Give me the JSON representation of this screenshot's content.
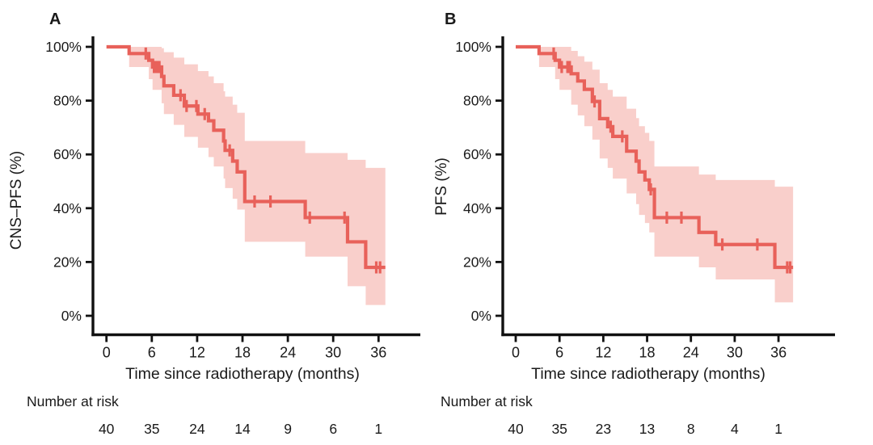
{
  "figure": {
    "background": "#ffffff",
    "text_color": "#1a1a1a",
    "axis_color": "#111111"
  },
  "chart_data": [
    {
      "type": "line",
      "subtype": "kaplan-meier-step-with-confidence-band",
      "panel_label": "A",
      "xlabel": "Time since radiotherapy (months)",
      "ylabel": "CNS–PFS (%)",
      "risk_label": "Number at risk",
      "line_color": "#e8615a",
      "band_color": "#f9cfcb",
      "xlim": [
        0,
        38
      ],
      "ylim": [
        0,
        100
      ],
      "grid": false,
      "legend": "none",
      "x_ticks": [
        {
          "value": 0,
          "label": "0"
        },
        {
          "value": 6,
          "label": "6"
        },
        {
          "value": 12,
          "label": "12"
        },
        {
          "value": 18,
          "label": "18"
        },
        {
          "value": 24,
          "label": "24"
        },
        {
          "value": 30,
          "label": "30"
        },
        {
          "value": 36,
          "label": "36"
        }
      ],
      "y_ticks": [
        {
          "value": 100,
          "label": "100%"
        },
        {
          "value": 80,
          "label": "80%"
        },
        {
          "value": 60,
          "label": "60%"
        },
        {
          "value": 40,
          "label": "40%"
        },
        {
          "value": 20,
          "label": "20%"
        },
        {
          "value": 0,
          "label": "0%"
        }
      ],
      "steps": [
        [
          0,
          100
        ],
        [
          3,
          97.5
        ],
        [
          5.6,
          95
        ],
        [
          6.1,
          92.5
        ],
        [
          7.3,
          89
        ],
        [
          7.6,
          85.5
        ],
        [
          8.9,
          82
        ],
        [
          10.3,
          78
        ],
        [
          12.1,
          75
        ],
        [
          13.5,
          72.5
        ],
        [
          14.2,
          69
        ],
        [
          15.5,
          65
        ],
        [
          15.7,
          61.5
        ],
        [
          16.7,
          57.5
        ],
        [
          17.3,
          53.5
        ],
        [
          18.3,
          42.5
        ],
        [
          26.3,
          36.5
        ],
        [
          31.9,
          27.5
        ],
        [
          34.3,
          18
        ]
      ],
      "end_time": 36.9,
      "censors": [
        [
          5.2,
          97.5
        ],
        [
          6.3,
          92.5
        ],
        [
          6.55,
          92.5
        ],
        [
          6.8,
          92.5
        ],
        [
          7.0,
          92.5
        ],
        [
          9.8,
          82
        ],
        [
          10.6,
          78
        ],
        [
          11.9,
          78
        ],
        [
          13.0,
          75
        ],
        [
          16.3,
          61.5
        ],
        [
          19.6,
          42.5
        ],
        [
          21.7,
          42.5
        ],
        [
          26.9,
          36.5
        ],
        [
          31.5,
          36.5
        ],
        [
          35.7,
          18
        ],
        [
          36.2,
          18
        ]
      ],
      "band": [
        [
          0,
          100,
          100
        ],
        [
          3,
          92.5,
          100
        ],
        [
          5.6,
          88,
          100
        ],
        [
          6.1,
          84,
          100
        ],
        [
          7.3,
          79,
          99.5
        ],
        [
          7.6,
          75,
          98
        ],
        [
          8.9,
          71,
          96
        ],
        [
          10.3,
          66.5,
          93.5
        ],
        [
          12.1,
          62.5,
          91
        ],
        [
          13.5,
          59,
          89
        ],
        [
          14.2,
          55.5,
          86.5
        ],
        [
          15.5,
          51,
          83.5
        ],
        [
          15.7,
          47.5,
          81.5
        ],
        [
          16.7,
          43.5,
          78.5
        ],
        [
          17.3,
          39.5,
          75.5
        ],
        [
          18.3,
          27.5,
          65
        ],
        [
          26.3,
          22,
          60.5
        ],
        [
          31.9,
          11,
          58
        ],
        [
          34.3,
          4,
          55
        ]
      ],
      "number_at_risk": {
        "times": [
          0,
          6,
          12,
          18,
          24,
          30,
          36
        ],
        "counts": [
          40,
          35,
          24,
          14,
          9,
          6,
          1
        ]
      }
    },
    {
      "type": "line",
      "subtype": "kaplan-meier-step-with-confidence-band",
      "panel_label": "B",
      "xlabel": "Time since radiotherapy (months)",
      "ylabel": "PFS (%)",
      "risk_label": "Number at risk",
      "line_color": "#e8615a",
      "band_color": "#f9cfcb",
      "xlim": [
        0,
        38
      ],
      "ylim": [
        0,
        100
      ],
      "grid": false,
      "legend": "none",
      "x_ticks": [
        {
          "value": 0,
          "label": "0"
        },
        {
          "value": 6,
          "label": "6"
        },
        {
          "value": 12,
          "label": "12"
        },
        {
          "value": 18,
          "label": "18"
        },
        {
          "value": 24,
          "label": "24"
        },
        {
          "value": 30,
          "label": "30"
        },
        {
          "value": 36,
          "label": "36"
        }
      ],
      "y_ticks": [
        {
          "value": 100,
          "label": "100%"
        },
        {
          "value": 80,
          "label": "80%"
        },
        {
          "value": 60,
          "label": "60%"
        },
        {
          "value": 40,
          "label": "40%"
        },
        {
          "value": 20,
          "label": "20%"
        },
        {
          "value": 0,
          "label": "0%"
        }
      ],
      "steps": [
        [
          0,
          100
        ],
        [
          3.2,
          97.5
        ],
        [
          5.4,
          95
        ],
        [
          6.0,
          92.5
        ],
        [
          7.6,
          90
        ],
        [
          8.5,
          87.3
        ],
        [
          9.4,
          84.2
        ],
        [
          10.5,
          79.7
        ],
        [
          11.5,
          73.3
        ],
        [
          12.6,
          70.3
        ],
        [
          13.3,
          66.7
        ],
        [
          15.2,
          61.2
        ],
        [
          16.5,
          57.5
        ],
        [
          16.9,
          53.5
        ],
        [
          17.7,
          50.5
        ],
        [
          18.3,
          47
        ],
        [
          19.0,
          36.5
        ],
        [
          25.1,
          31
        ],
        [
          27.4,
          26.5
        ],
        [
          35.5,
          18
        ]
      ],
      "end_time": 38.0,
      "censors": [
        [
          5.2,
          97.5
        ],
        [
          6.3,
          92.5
        ],
        [
          7.1,
          92.5
        ],
        [
          7.4,
          92.5
        ],
        [
          10.8,
          79.7
        ],
        [
          13.0,
          70.3
        ],
        [
          14.6,
          66.7
        ],
        [
          18.5,
          47
        ],
        [
          20.7,
          36.5
        ],
        [
          22.7,
          36.5
        ],
        [
          28.3,
          26.5
        ],
        [
          33.1,
          26.5
        ],
        [
          37.2,
          18
        ],
        [
          37.6,
          18
        ]
      ],
      "band": [
        [
          0,
          100,
          100
        ],
        [
          3.2,
          92.5,
          100
        ],
        [
          5.4,
          88,
          100
        ],
        [
          6.0,
          84,
          100
        ],
        [
          7.6,
          78.5,
          98.5
        ],
        [
          8.5,
          74.5,
          96.5
        ],
        [
          9.4,
          70.5,
          94.5
        ],
        [
          10.5,
          65.5,
          91.5
        ],
        [
          11.5,
          58.5,
          86.5
        ],
        [
          12.6,
          55,
          84
        ],
        [
          13.3,
          51,
          81.5
        ],
        [
          15.2,
          45.5,
          77
        ],
        [
          16.5,
          41.5,
          73.5
        ],
        [
          16.9,
          37.5,
          70.5
        ],
        [
          17.7,
          34.5,
          68
        ],
        [
          18.3,
          31,
          65
        ],
        [
          19.0,
          22,
          55.5
        ],
        [
          25.1,
          18,
          52.5
        ],
        [
          27.4,
          13.5,
          50.5
        ],
        [
          35.5,
          5,
          48
        ]
      ],
      "number_at_risk": {
        "times": [
          0,
          6,
          12,
          18,
          24,
          30,
          36
        ],
        "counts": [
          40,
          35,
          23,
          13,
          8,
          4,
          1
        ]
      }
    }
  ]
}
